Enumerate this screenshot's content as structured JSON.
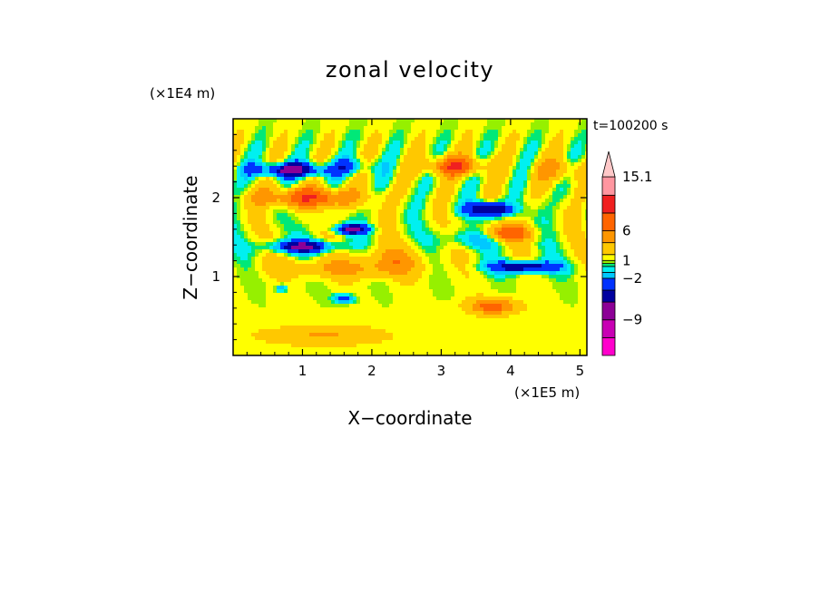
{
  "chart_data": {
    "type": "heatmap",
    "title": "zonal velocity",
    "xlabel": "X−coordinate",
    "ylabel": "Z−coordinate",
    "x_scale_label": "(×1E5 m)",
    "y_scale_label": "(×1E4 m)",
    "time_label": "t=100200 s",
    "xlim": [
      0,
      5.1
    ],
    "ylim": [
      0,
      3.0
    ],
    "x_ticks": [
      "1",
      "2",
      "3",
      "4",
      "5"
    ],
    "x_tick_values": [
      1,
      2,
      3,
      4,
      5
    ],
    "y_ticks": [
      "1",
      "2"
    ],
    "y_tick_values": [
      1,
      2
    ],
    "colorbar": {
      "labels": [
        "15.1",
        "6",
        "1",
        "−2",
        "−9"
      ],
      "label_values": [
        15.1,
        6,
        1,
        -2,
        -9
      ],
      "extend": "max",
      "levels": [
        {
          "min": -15,
          "max": -12,
          "color": "#ff00cc"
        },
        {
          "min": -12,
          "max": -9,
          "color": "#c800b4"
        },
        {
          "min": -9,
          "max": -6,
          "color": "#8c0096"
        },
        {
          "min": -6,
          "max": -4,
          "color": "#0000a0"
        },
        {
          "min": -4,
          "max": -2,
          "color": "#0032ff"
        },
        {
          "min": -2,
          "max": -1,
          "color": "#00c8ff"
        },
        {
          "min": -1,
          "max": 0,
          "color": "#00f0f0"
        },
        {
          "min": 0,
          "max": 0.5,
          "color": "#00e878"
        },
        {
          "min": 0.5,
          "max": 1,
          "color": "#96f000"
        },
        {
          "min": 1,
          "max": 2,
          "color": "#ffff00"
        },
        {
          "min": 2,
          "max": 4,
          "color": "#ffc800"
        },
        {
          "min": 4,
          "max": 6,
          "color": "#ff9600"
        },
        {
          "min": 6,
          "max": 9,
          "color": "#ff6400"
        },
        {
          "min": 9,
          "max": 12,
          "color": "#f02020"
        },
        {
          "min": 12,
          "max": 15.1,
          "color": "#ff96a0"
        },
        {
          "min": 15.1,
          "max": 18,
          "color": "#ffc8c8"
        }
      ]
    },
    "field_features": [
      {
        "x": 0.85,
        "z": 2.35,
        "value": -8,
        "wx": 0.55,
        "wz": 0.09
      },
      {
        "x": 1.75,
        "z": 2.4,
        "value": -3,
        "wx": 0.3,
        "wz": 0.1
      },
      {
        "x": 1.0,
        "z": 1.38,
        "value": -7,
        "wx": 0.5,
        "wz": 0.08
      },
      {
        "x": 1.7,
        "z": 1.6,
        "value": -8,
        "wx": 0.25,
        "wz": 0.06
      },
      {
        "x": 3.7,
        "z": 1.85,
        "value": -8,
        "wx": 0.35,
        "wz": 0.09
      },
      {
        "x": 4.2,
        "z": 1.12,
        "value": -7,
        "wx": 0.5,
        "wz": 0.08
      },
      {
        "x": 3.45,
        "z": 1.48,
        "value": -3,
        "wx": 0.45,
        "wz": 0.12
      },
      {
        "x": 1.6,
        "z": 0.72,
        "value": -5,
        "wx": 0.15,
        "wz": 0.06
      },
      {
        "x": 0.7,
        "z": 0.85,
        "value": -4,
        "wx": 0.08,
        "wz": 0.05
      },
      {
        "x": 1.1,
        "z": 2.0,
        "value": 7,
        "wx": 0.7,
        "wz": 0.12
      },
      {
        "x": 1.5,
        "z": 1.1,
        "value": 3,
        "wx": 0.9,
        "wz": 0.12
      },
      {
        "x": 2.3,
        "z": 1.2,
        "value": 3,
        "wx": 0.5,
        "wz": 0.18
      },
      {
        "x": 3.2,
        "z": 2.4,
        "value": 7,
        "wx": 0.4,
        "wz": 0.12
      },
      {
        "x": 3.95,
        "z": 1.55,
        "value": 7,
        "wx": 0.35,
        "wz": 0.1
      },
      {
        "x": 3.75,
        "z": 0.62,
        "value": 6,
        "wx": 0.35,
        "wz": 0.1
      },
      {
        "x": 1.3,
        "z": 0.25,
        "value": 3,
        "wx": 0.9,
        "wz": 0.12
      },
      {
        "x": 4.7,
        "z": 2.35,
        "value": 3,
        "wx": 0.4,
        "wz": 0.15
      }
    ]
  }
}
